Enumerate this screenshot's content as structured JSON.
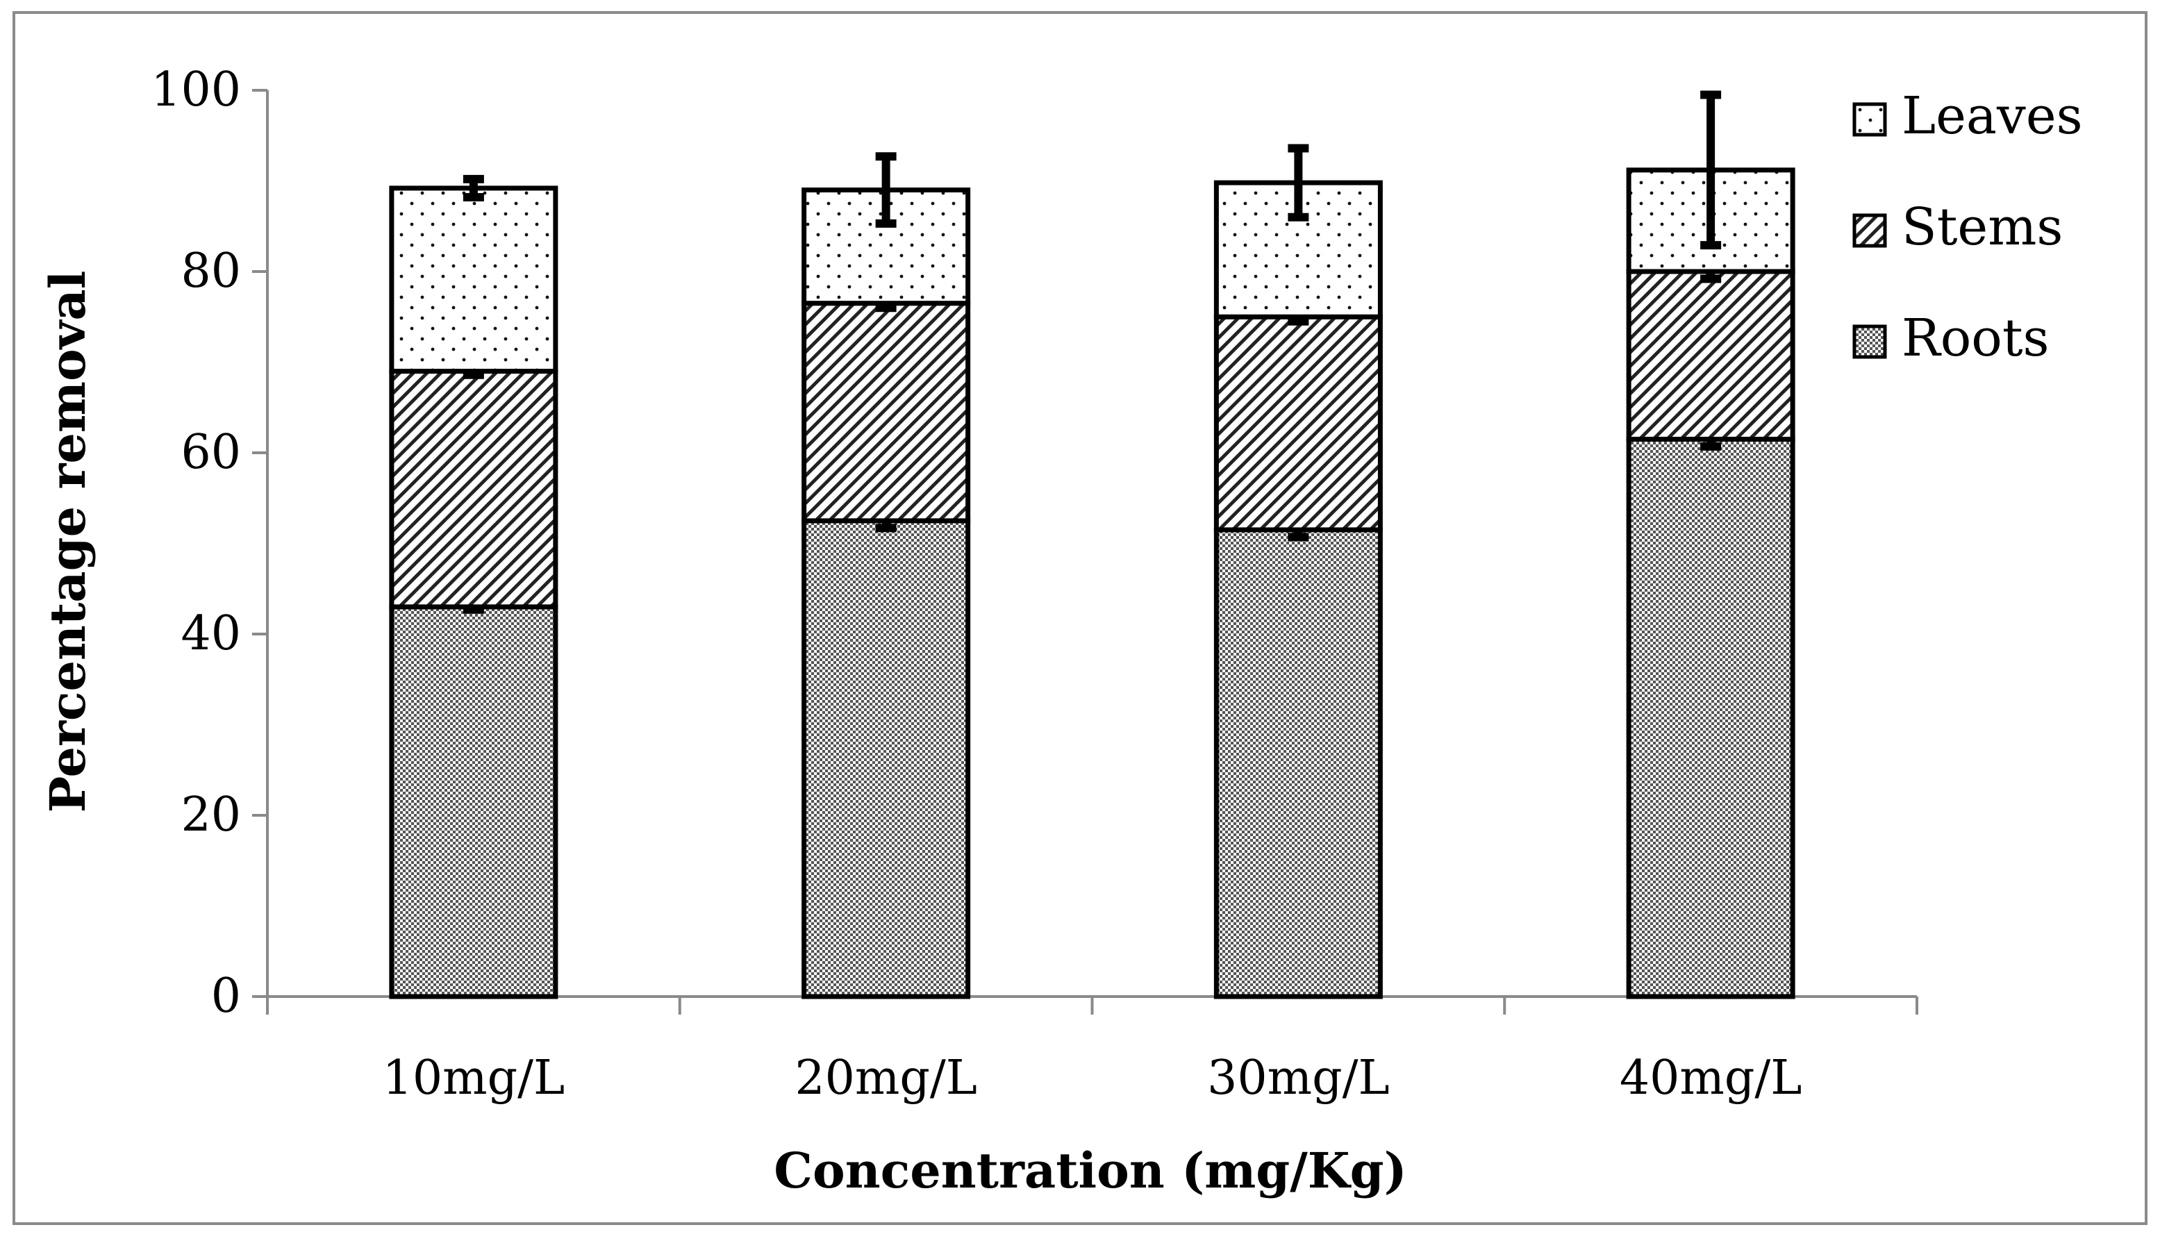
{
  "chart_data": {
    "type": "bar",
    "stacked": true,
    "title": "",
    "xlabel": "Concentration (mg/Kg)",
    "ylabel": "Percentage removal",
    "ylim": [
      0,
      100
    ],
    "yticks": [
      0,
      20,
      40,
      60,
      80,
      100
    ],
    "categories": [
      "10mg/L",
      "20mg/L",
      "30mg/L",
      "40mg/L"
    ],
    "series": [
      {
        "name": "Roots",
        "pattern": "checker",
        "values": [
          43.0,
          52.5,
          51.5,
          61.5
        ],
        "errors": [
          0.3,
          0.8,
          0.8,
          0.8
        ]
      },
      {
        "name": "Stems",
        "pattern": "diagonal",
        "values": [
          26.0,
          24.0,
          23.5,
          18.5
        ],
        "errors": [
          0.4,
          0.5,
          0.5,
          0.8
        ]
      },
      {
        "name": "Leaves",
        "pattern": "dots",
        "values": [
          20.2,
          12.5,
          14.8,
          11.2
        ],
        "errors": [
          1.0,
          3.7,
          3.8,
          8.3
        ]
      }
    ],
    "legend": {
      "position": "top-right",
      "order": [
        "Leaves",
        "Stems",
        "Roots"
      ]
    },
    "colors": {
      "stroke": "#000000",
      "axis": "#8a8a8a",
      "frame": "#8a8a8a",
      "checker": "#5a5a5a"
    }
  }
}
